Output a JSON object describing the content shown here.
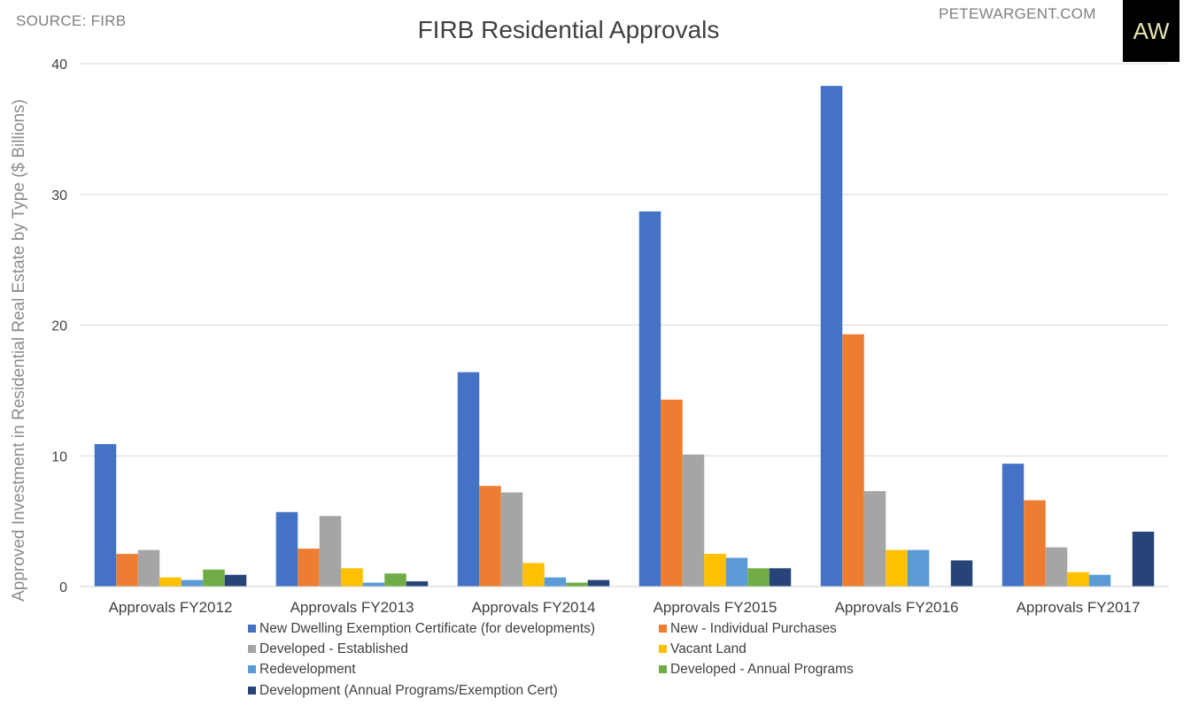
{
  "header": {
    "source": "SOURCE: FIRB",
    "site": "PETEWARGENT.COM",
    "logo": "AW"
  },
  "chart_data": {
    "type": "bar",
    "title": "FIRB Residential Approvals",
    "ylabel": "Approved Investment in Residential Real Estate by Type ($ Billions)",
    "xlabel": "",
    "ylim": [
      0,
      40
    ],
    "yticks": [
      0,
      10,
      20,
      30,
      40
    ],
    "grid": true,
    "legend_position": "bottom",
    "categories": [
      "Approvals FY2012",
      "Approvals FY2013",
      "Approvals FY2014",
      "Approvals FY2015",
      "Approvals FY2016",
      "Approvals FY2017"
    ],
    "series": [
      {
        "name": "New Dwelling Exemption Certificate (for developments)",
        "color": "#4472c4",
        "values": [
          10.9,
          5.7,
          16.4,
          28.7,
          38.3,
          9.4
        ]
      },
      {
        "name": "New - Individual Purchases",
        "color": "#ed7d31",
        "values": [
          2.5,
          2.9,
          7.7,
          14.3,
          19.3,
          6.6
        ]
      },
      {
        "name": "Developed - Established",
        "color": "#a5a5a5",
        "values": [
          2.8,
          5.4,
          7.2,
          10.1,
          7.3,
          3.0
        ]
      },
      {
        "name": "Vacant Land",
        "color": "#ffc000",
        "values": [
          0.7,
          1.4,
          1.8,
          2.5,
          2.8,
          1.1
        ]
      },
      {
        "name": "Redevelopment",
        "color": "#5b9bd5",
        "values": [
          0.5,
          0.3,
          0.7,
          2.2,
          2.8,
          0.9
        ]
      },
      {
        "name": "Developed - Annual Programs",
        "color": "#70ad47",
        "values": [
          1.3,
          1.0,
          0.3,
          1.4,
          null,
          null
        ]
      },
      {
        "name": "Development (Annual Programs/Exemption Cert)",
        "color": "#264478",
        "values": [
          0.9,
          0.4,
          0.5,
          1.4,
          2.0,
          4.2
        ]
      }
    ]
  }
}
